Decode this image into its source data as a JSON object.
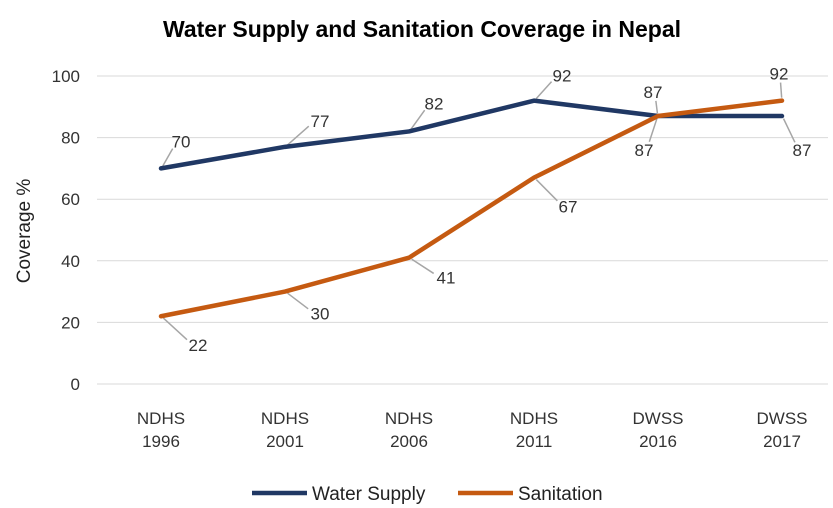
{
  "chart_data": {
    "type": "line",
    "title": "Water Supply and Sanitation Coverage in Nepal",
    "ylabel": "Coverage %",
    "xlabel": "",
    "ylim": [
      0,
      100
    ],
    "yticks": [
      0,
      20,
      40,
      60,
      80,
      100
    ],
    "grid": true,
    "legend_position": "bottom",
    "categories": [
      [
        "NDHS",
        "1996"
      ],
      [
        "NDHS",
        "2001"
      ],
      [
        "NDHS",
        "2006"
      ],
      [
        "NDHS",
        "2011"
      ],
      [
        "DWSS",
        "2016"
      ],
      [
        "DWSS",
        "2017"
      ]
    ],
    "series": [
      {
        "name": "Water Supply",
        "color": "#203864",
        "values": [
          70,
          77,
          82,
          92,
          87,
          87
        ]
      },
      {
        "name": "Sanitation",
        "color": "#C55A11",
        "values": [
          22,
          30,
          41,
          67,
          87,
          92
        ]
      }
    ]
  }
}
